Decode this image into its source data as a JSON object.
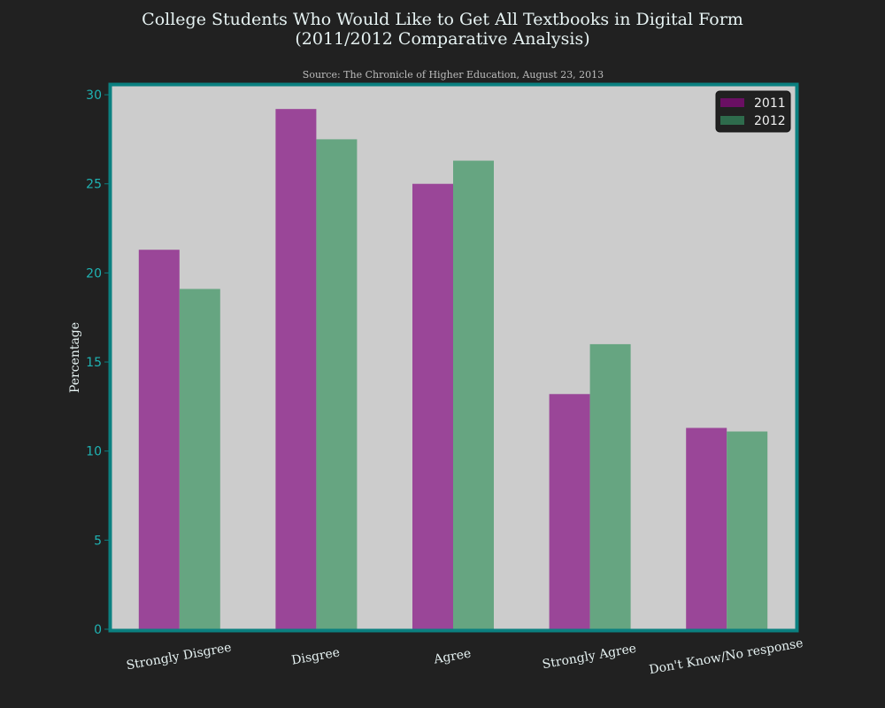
{
  "chart_data": {
    "type": "bar",
    "title_line1": "College Students Who Would Like to Get All Textbooks in Digital Form",
    "title_line2": "(2011/2012 Comparative Analysis)",
    "subtitle": "Source: The Chronicle of Higher Education, August 23, 2013",
    "xlabel": "",
    "ylabel": "Percentage",
    "categories": [
      "Strongly Disgree",
      "Disgree",
      "Agree",
      "Strongly Agree",
      "Don't Know/No response"
    ],
    "series": [
      {
        "name": "2011",
        "values": [
          21.3,
          29.2,
          25.0,
          13.2,
          11.3
        ],
        "color": "#9a4698",
        "legend_color": "#6a0f63"
      },
      {
        "name": "2012",
        "values": [
          19.1,
          27.5,
          26.3,
          16.0,
          11.1
        ],
        "color": "#66a581",
        "legend_color": "#2e6b4c"
      }
    ],
    "ylim": [
      0,
      30.5
    ],
    "yticks": [
      0,
      5,
      10,
      15,
      20,
      25,
      30
    ],
    "grid": false,
    "legend_position": "top-right",
    "colors": {
      "background": "#212121",
      "plot_area": "#cccccc",
      "frame": "#0b8080",
      "tick_text": "#1fb3b3",
      "label_text": "#e6f2f2"
    }
  }
}
